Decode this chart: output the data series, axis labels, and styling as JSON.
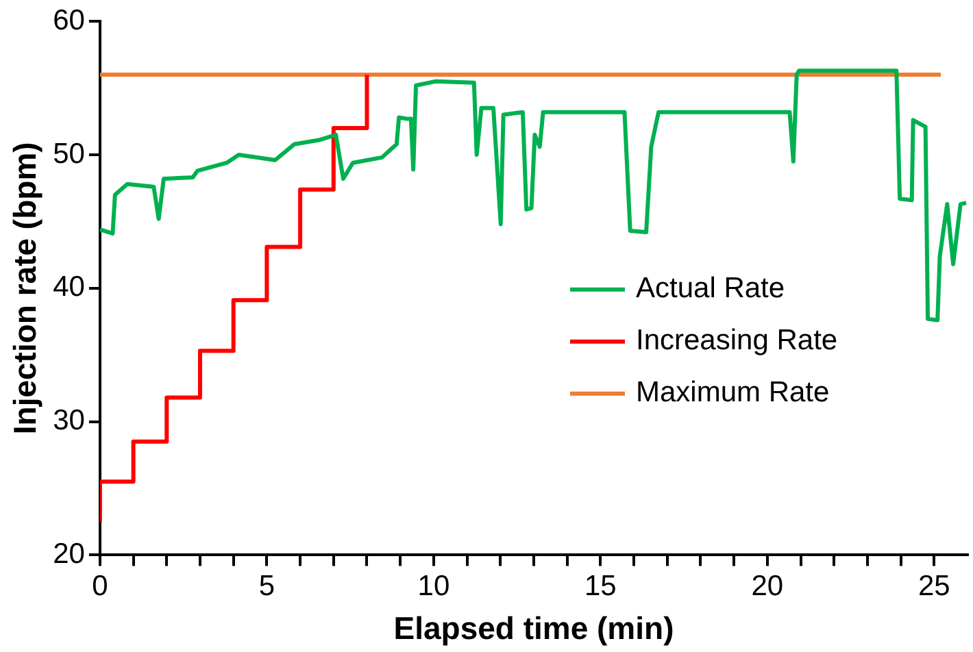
{
  "chart_data": {
    "type": "line",
    "xlabel": "Elapsed time (min)",
    "ylabel": "Injection rate (bpm)",
    "xlim": [
      0,
      26
    ],
    "xticks": [
      0,
      {
        "value": 1,
        "label": null
      },
      {
        "value": 2,
        "label": null
      },
      {
        "value": 3,
        "label": null
      },
      {
        "value": 4,
        "label": null
      },
      5,
      {
        "value": 6,
        "label": null
      },
      {
        "value": 7,
        "label": null
      },
      {
        "value": 8,
        "label": null
      },
      {
        "value": 9,
        "label": null
      },
      10,
      {
        "value": 11,
        "label": null
      },
      {
        "value": 12,
        "label": null
      },
      {
        "value": 13,
        "label": null
      },
      {
        "value": 14,
        "label": null
      },
      15,
      {
        "value": 16,
        "label": null
      },
      {
        "value": 17,
        "label": null
      },
      {
        "value": 18,
        "label": null
      },
      {
        "value": 19,
        "label": null
      },
      20,
      {
        "value": 21,
        "label": null
      },
      {
        "value": 22,
        "label": null
      },
      {
        "value": 23,
        "label": null
      },
      {
        "value": 24,
        "label": null
      },
      25
    ],
    "ylim": [
      20,
      60
    ],
    "yticks": [
      20,
      30,
      40,
      50,
      60
    ],
    "grid": false,
    "legend": "right",
    "marker": "none",
    "line_style": "solid",
    "series": [
      {
        "name": "Actual Rate",
        "color": "#00b050",
        "x": [
          0,
          0.38,
          0.45,
          0.82,
          1.61,
          1.76,
          1.91,
          2.78,
          2.92,
          3.8,
          4.16,
          5.25,
          5.83,
          6.56,
          7.07,
          7.29,
          7.58,
          8.45,
          8.89,
          8.96,
          9.2,
          9.32,
          9.39,
          9.47,
          10.05,
          11.21,
          11.29,
          11.43,
          11.79,
          12.01,
          12.09,
          12.67,
          12.78,
          12.93,
          13.03,
          13.18,
          13.28,
          15.72,
          15.89,
          16.37,
          16.52,
          16.74,
          17.76,
          20.67,
          20.78,
          20.88,
          20.95,
          23.87,
          23.97,
          24.33,
          24.37,
          24.74,
          24.81,
          25.1,
          25.17,
          25.39,
          25.57,
          25.79,
          25.96
        ],
        "values": [
          44.4,
          44.1,
          47,
          47.8,
          47.6,
          45.2,
          48.2,
          48.3,
          48.8,
          49.4,
          50,
          49.6,
          50.8,
          51.1,
          51.5,
          48.2,
          49.4,
          49.8,
          50.8,
          52.8,
          52.7,
          52.7,
          48.9,
          55.2,
          55.5,
          55.4,
          50,
          53.5,
          53.5,
          44.8,
          53,
          53.2,
          45.9,
          46,
          51.5,
          50.6,
          53.2,
          53.2,
          44.3,
          44.2,
          50.6,
          53.2,
          53.2,
          53.2,
          49.5,
          56,
          56.3,
          56.3,
          46.7,
          46.6,
          52.6,
          52.1,
          37.7,
          37.6,
          42.4,
          46.3,
          41.8,
          46.3,
          46.4
        ]
      },
      {
        "name": "Increasing Rate",
        "color": "#ff0000",
        "x": [
          0,
          0,
          1,
          1,
          2,
          2,
          3,
          3,
          4,
          4,
          5,
          5,
          6,
          6,
          7,
          7,
          8,
          8
        ],
        "values": [
          22.5,
          25.5,
          25.5,
          28.5,
          28.5,
          31.8,
          31.8,
          35.3,
          35.3,
          39.1,
          39.1,
          43.1,
          43.1,
          47.4,
          47.4,
          52,
          52,
          56
        ]
      },
      {
        "name": "Maximum Rate",
        "color": "#ed7d31",
        "x": [
          0,
          25.2
        ],
        "values": [
          56,
          56
        ]
      }
    ]
  }
}
